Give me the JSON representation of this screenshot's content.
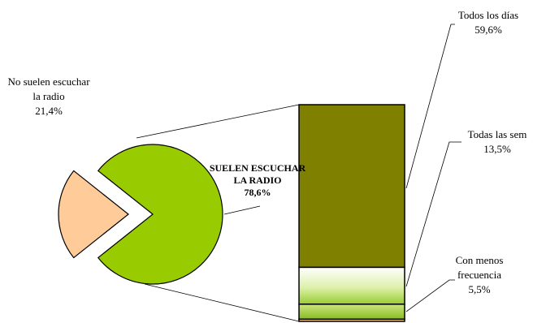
{
  "chart_data": {
    "type": "bar-of-pie",
    "pie": {
      "slices": [
        {
          "label_lines": [
            "SUELEN ESCUCHAR",
            "LA RADIO"
          ],
          "value_label": "78,6%",
          "value": 78.6,
          "color": "#99CC00"
        },
        {
          "label_lines": [
            "No suelen escuchar",
            "la radio"
          ],
          "value_label": "21,4%",
          "value": 21.4,
          "color": "#FFCC99",
          "exploded": true
        }
      ]
    },
    "bar": {
      "segments": [
        {
          "label_lines": [
            "Todos los días"
          ],
          "value_label": "59,6%",
          "value": 59.6,
          "color": "#808000"
        },
        {
          "label_lines": [
            "Todas las sem"
          ],
          "value_label": "13,5%",
          "value": 13.5,
          "color": "#CCEE88"
        },
        {
          "label_lines": [
            "Con menos",
            "frecuencia"
          ],
          "value_label": "5,5%",
          "value": 5.5,
          "color": "#99CC33"
        },
        {
          "label_lines": [],
          "value_label": "",
          "value": 0.8,
          "color": "#FFCC99"
        }
      ]
    }
  }
}
